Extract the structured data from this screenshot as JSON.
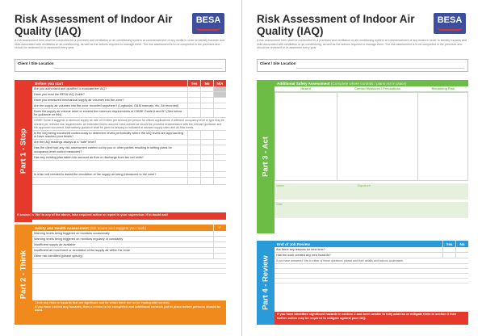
{
  "left": {
    "title": "Risk Assessment of Indoor Air Quality (IAQ)",
    "logo_text": "BESA",
    "intro": "A risk assessment form shall be conducted for a premises and ventilation or air conditioning system at commencement of any works in order to identify hazards and risks associated with ventilation or air-conditioning, as well as the actions required to manage them. The risk assessment is to be completed in the premises and should be reviewed or re-assessed every year.",
    "client_label": "Client / Site Location",
    "part1": {
      "tab": "Part 1 - Stop",
      "header": "Before you start",
      "yes": "Yes",
      "no": "No",
      "na": "N/A",
      "questions": [
        "Are you authorised and qualified to evaluate the IAQ?",
        "Have you read the BESA IAQ Guide?",
        "Have you measured mechanical supply air volumes into the zone?",
        "Are the supply air volumes into the zone recorded anywhere? (Logbooks, O&M manuals, etc. Air recorded)",
        "Does the supply air volume meet or exceed the minimum requirements of CIBSE Guide A and B? (See below for guidance on this)"
      ],
      "note": "CIBSE Guide A suggests a minimum supply air rate of 10 litres per second per person for offices applications. A different occupancy level or type may be needed per relevant risk requirements. An extended limit to assume extra outside air should be provided in accordance with the relevant guidance and the approved document. Alternatively guidance shall be given to keeping to indicated or advised supply rates and air-flow levels.",
      "questions2": [
        "Is the IAQ being monitored continuously to determine levels periodically where the IAQ levels are approaching or have reached poor levels?",
        "Are the IAQ readings always at a “safe” level?",
        "Has the client had any risk assessment carried out by you or other parties resulting in setting plans for occupancy level control measures?",
        "Has any existing plan taken into account air flow or discharge from fan coil units?"
      ],
      "question_last": "Is a fan coil needed to assist the circulation of the supply air being introduced to the zone?",
      "footer": "If answer is ‘No’ to any of the above, take required action or report to your supervisor. If in doubt ask!"
    },
    "part2": {
      "tab": "Part 2 - Think",
      "header": "Safety and Health Assessment",
      "header_note": "(tick boxes and suggest you mark)",
      "tick": "✓",
      "items": [
        "Warning levels being triggered on monitors occasionally",
        "Warning levels being triggered on monitors regularly or constantly",
        "Insufficient supply air available",
        "Insufficient air movement or circulation of the supply air within the zone",
        "Other risk identified (please specify)"
      ],
      "footer_note": "Circle any risks or hazards that are significant and for which there are no (or inadequate) controls.",
      "footer": "If you have circled any hazards, then a review to be completed and additional controls put in place before persons should be used."
    }
  },
  "right": {
    "title": "Risk Assessment of Indoor Air Quality (IAQ)",
    "logo_text": "BESA",
    "intro": "A risk assessment form shall be conducted for a premises and ventilation or air conditioning system at commencement of any works in order to identify hazards and risks associated with ventilation or air-conditioning, as well as the actions required to manage them. The risk assessment is to be completed in the premises and should be reviewed or re-assessed every year.",
    "client_label": "Client / Site Location",
    "part3": {
      "tab": "Part 3 - Act",
      "header": "Additional Safety Assessment",
      "header_note": "(Complete where controls / plans not in place)",
      "cols": [
        "Hazard",
        "Control Measures / Precautions",
        "Remaining Risk"
      ],
      "name_label": "Name",
      "signature_label": "Signature",
      "date_label": "Date"
    },
    "part4": {
      "tab": "Part 4 - Review",
      "header": "End of Job Review",
      "yes": "Yes",
      "no": "No",
      "questions": [
        "Are there any lessons for next time?",
        "Has the work created any new hazards?"
      ],
      "note": "If you have answered Yes to either of these questions please add their details and actions undertaken.",
      "footer": "If you have identified significant hazards in section 2 and been unable to fully address or mitigate them in section 3 then further action may be required to mitigate against poor IAQ."
    }
  }
}
